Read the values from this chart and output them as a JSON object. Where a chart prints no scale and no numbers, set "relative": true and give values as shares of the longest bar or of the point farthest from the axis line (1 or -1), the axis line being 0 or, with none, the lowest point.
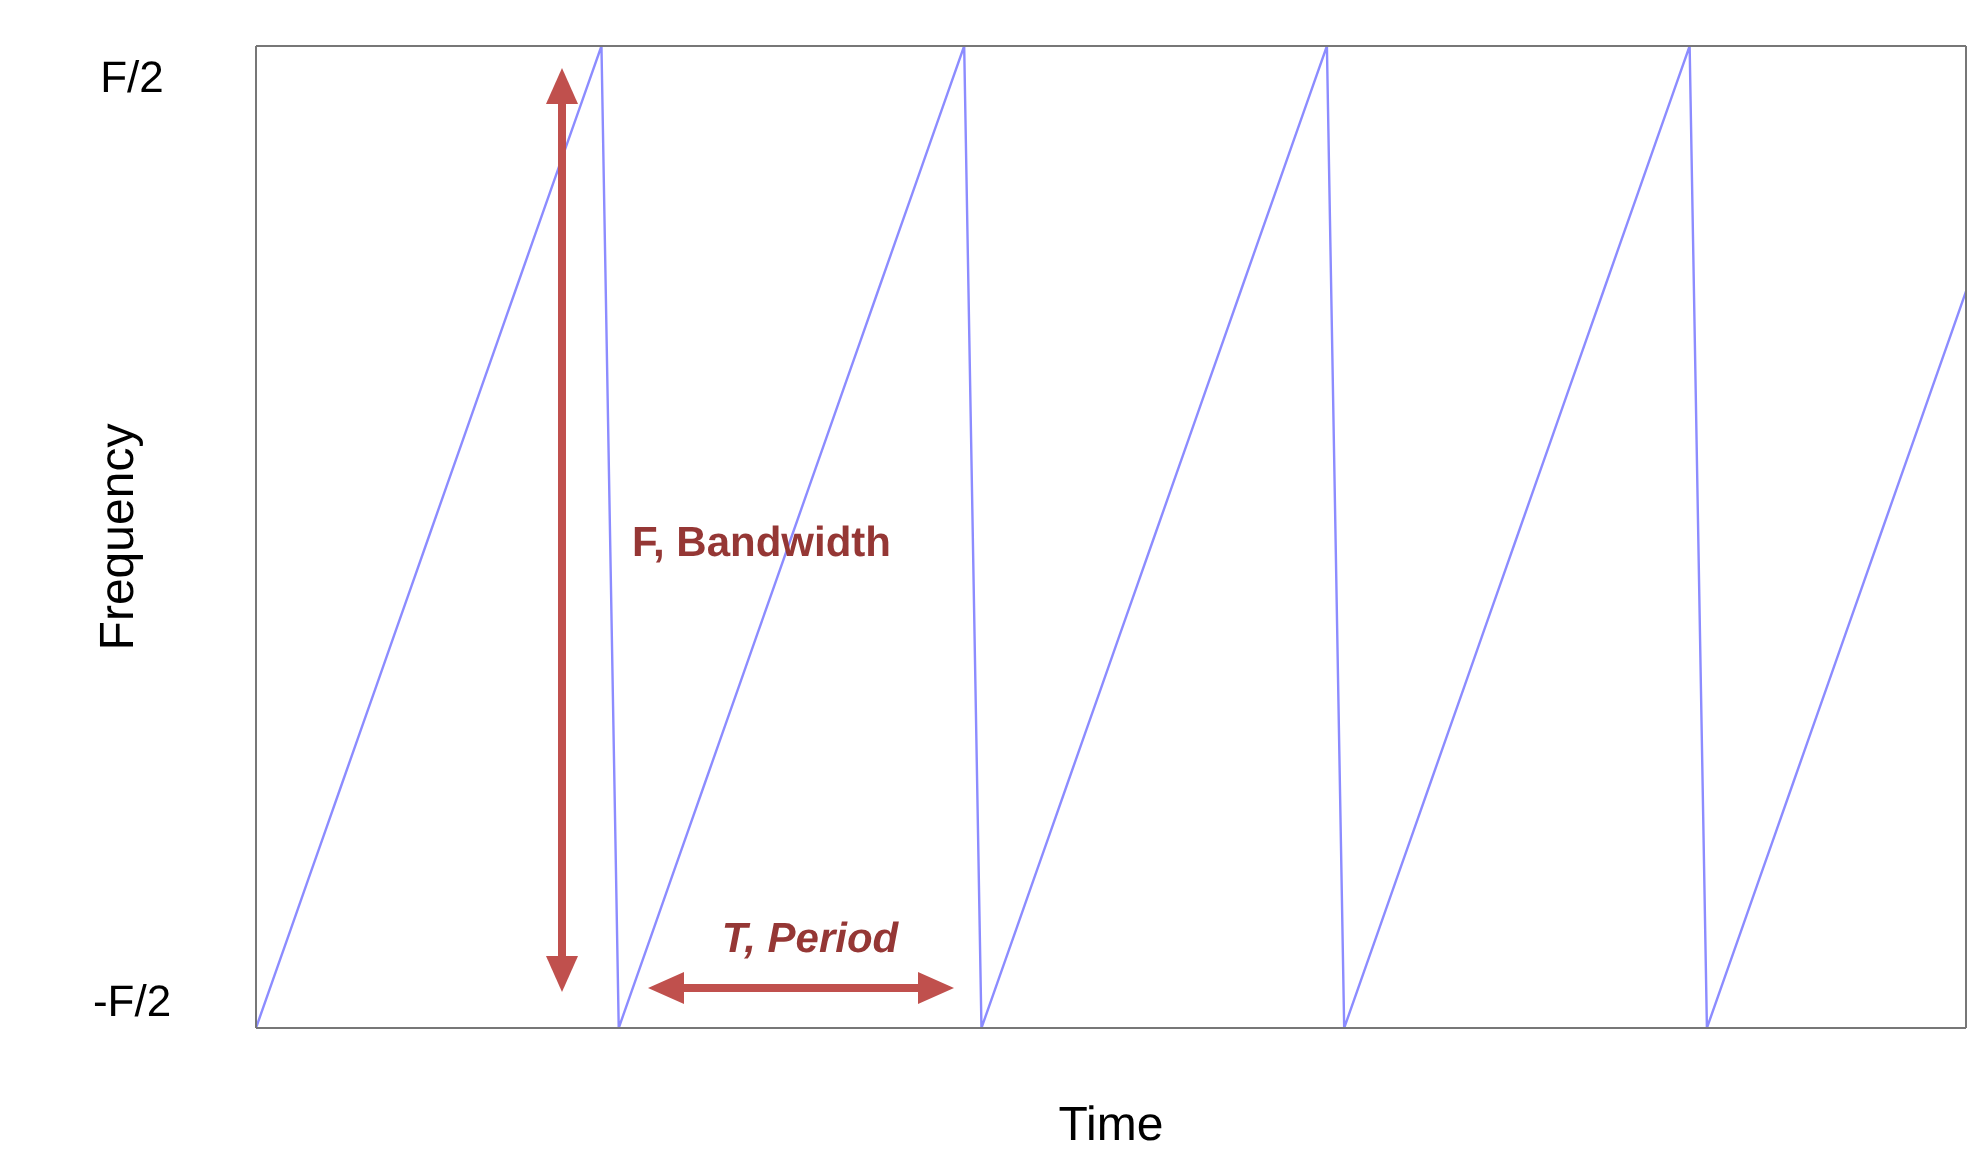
{
  "chart_data": {
    "type": "line",
    "xlabel": "Time",
    "ylabel": "Frequency",
    "annotations": [
      "F, Bandwidth",
      "T, Period",
      "F/2",
      "-F/2"
    ],
    "relative": true,
    "categories": [
      null,
      null,
      null,
      null,
      null,
      null,
      null,
      null,
      null,
      null,
      null,
      null,
      null,
      null,
      null,
      null,
      null,
      null,
      null,
      null,
      null,
      null,
      null,
      null,
      null,
      null,
      null,
      null,
      null,
      null,
      null,
      null,
      null,
      null,
      null,
      null,
      null,
      null,
      null,
      null,
      null,
      null,
      null,
      null,
      null,
      null,
      null,
      null,
      null,
      null,
      null,
      null,
      null,
      null,
      null,
      null,
      null,
      null,
      null,
      null,
      null,
      null,
      null,
      null,
      null,
      null,
      null,
      null,
      null,
      null,
      null,
      null,
      null,
      null,
      null,
      null,
      null,
      null,
      null,
      null,
      null,
      null,
      null,
      null,
      null,
      null,
      null,
      null,
      null,
      null,
      null,
      null,
      null,
      null,
      null,
      null,
      null,
      null,
      null,
      null
    ],
    "values": [
      0,
      0.05,
      0.1,
      0.15,
      0.2,
      0.25,
      0.3,
      0.35,
      0.4,
      0.45,
      0.5,
      0.55,
      0.6,
      0.65,
      0.7,
      0.75,
      0.8,
      0.85,
      0.9,
      0.95,
      1,
      0,
      0.05,
      0.1,
      0.15,
      0.2,
      0.25,
      0.3,
      0.35,
      0.4,
      0.45,
      0.5,
      0.55,
      0.6,
      0.65,
      0.7,
      0.75,
      0.8,
      0.85,
      0.9,
      0.95,
      1,
      0,
      0.05,
      0.1,
      0.15,
      0.2,
      0.25,
      0.3,
      0.35,
      0.4,
      0.45,
      0.5,
      0.55,
      0.6,
      0.65,
      0.7,
      0.75,
      0.8,
      0.85,
      0.9,
      0.95,
      1,
      0,
      0.05,
      0.1,
      0.15,
      0.2,
      0.25,
      0.3,
      0.35,
      0.4,
      0.45,
      0.5,
      0.55,
      0.6,
      0.65,
      0.7,
      0.75,
      0.8,
      0.85,
      0.9,
      0.95,
      1,
      0,
      0.05,
      0.1,
      0.15,
      0.2,
      0.25,
      0.3,
      0.35,
      0.4,
      0.45,
      0.5,
      0.55,
      0.6,
      0.65,
      0.7,
      0.75
    ],
    "color": "#8c8cff"
  }
}
